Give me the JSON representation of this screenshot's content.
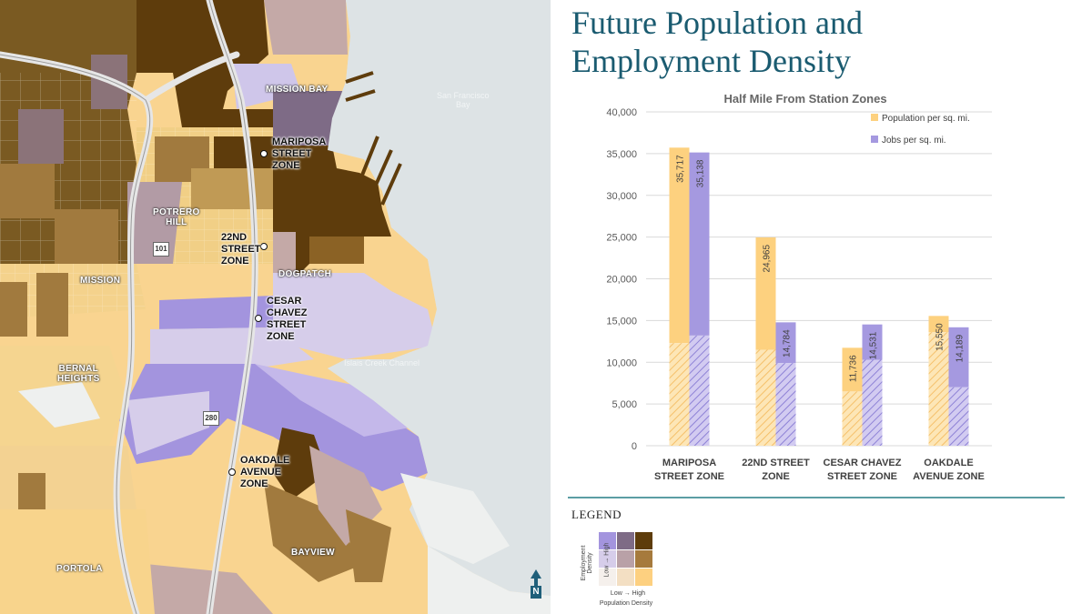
{
  "title": "Future Population and Employment Density",
  "map": {
    "neighborhoods": {
      "mission_bay": "MISSION BAY",
      "potrero_hill": "POTRERO\nHILL",
      "mission": "MISSION",
      "dogpatch": "DOGPATCH",
      "bernal_heights": "BERNAL\nHEIGHTS",
      "bayview": "BAYVIEW",
      "portola": "PORTOLA"
    },
    "zones": {
      "mariposa": "MARIPOSA\nSTREET\nZONE",
      "twenty_second": "22ND\nSTREET\nZONE",
      "cesar_chavez": "CESAR\nCHAVEZ\nSTREET\nZONE",
      "oakdale": "OAKDALE\nAVENUE\nZONE"
    },
    "water_labels": {
      "sf_bay": "San Francisco\nBay",
      "islais": "Islais Creek Channel"
    },
    "highways": {
      "us101": "101",
      "i280": "280"
    },
    "north_label": "N"
  },
  "chart_data": {
    "type": "bar",
    "title": "Half Mile From Station Zones",
    "categories": [
      "MARIPOSA\nSTREET ZONE",
      "22ND STREET\nZONE",
      "CESAR CHAVEZ\nSTREET ZONE",
      "OAKDALE\nAVENUE ZONE"
    ],
    "series": [
      {
        "name": "Population per sq. mi.",
        "values": [
          35717,
          24965,
          11736,
          15550
        ],
        "hatched_portion": [
          12300,
          11500,
          6500,
          13600
        ],
        "color": "#fdd17f",
        "hatch_color": "#f5c06a"
      },
      {
        "name": "Jobs per sq. mi.",
        "values": [
          35138,
          14784,
          14531,
          14189
        ],
        "hatched_portion": [
          13200,
          9900,
          10300,
          7000
        ],
        "color": "#a599e0",
        "hatch_color": "#8e82d6"
      }
    ],
    "ylim": [
      0,
      40000
    ],
    "yticks": [
      0,
      5000,
      10000,
      15000,
      20000,
      25000,
      30000,
      35000,
      40000
    ],
    "ytick_labels": [
      "0",
      "5,000",
      "10,000",
      "15,000",
      "20,000",
      "25,000",
      "30,000",
      "35,000",
      "40,000"
    ],
    "data_labels": [
      [
        "35,717",
        "24,965",
        "11,736",
        "15,550"
      ],
      [
        "35,138",
        "14,784",
        "14,531",
        "14,189"
      ]
    ],
    "grid": true,
    "legend_position": "top-right"
  },
  "legend": {
    "title": "LEGEND",
    "colors": [
      [
        "#a394de",
        "#7e6b86",
        "#5d3c0b"
      ],
      [
        "#d6cdea",
        "#b9a1a7",
        "#a67a3c"
      ],
      [
        "#f5f0ec",
        "#f3dfc3",
        "#fdd080"
      ]
    ],
    "y_axis_label": "Employment Density",
    "y_axis_range": "Low  →  High",
    "x_axis_range": "Low  →  High",
    "x_axis_label": "Population Density"
  }
}
